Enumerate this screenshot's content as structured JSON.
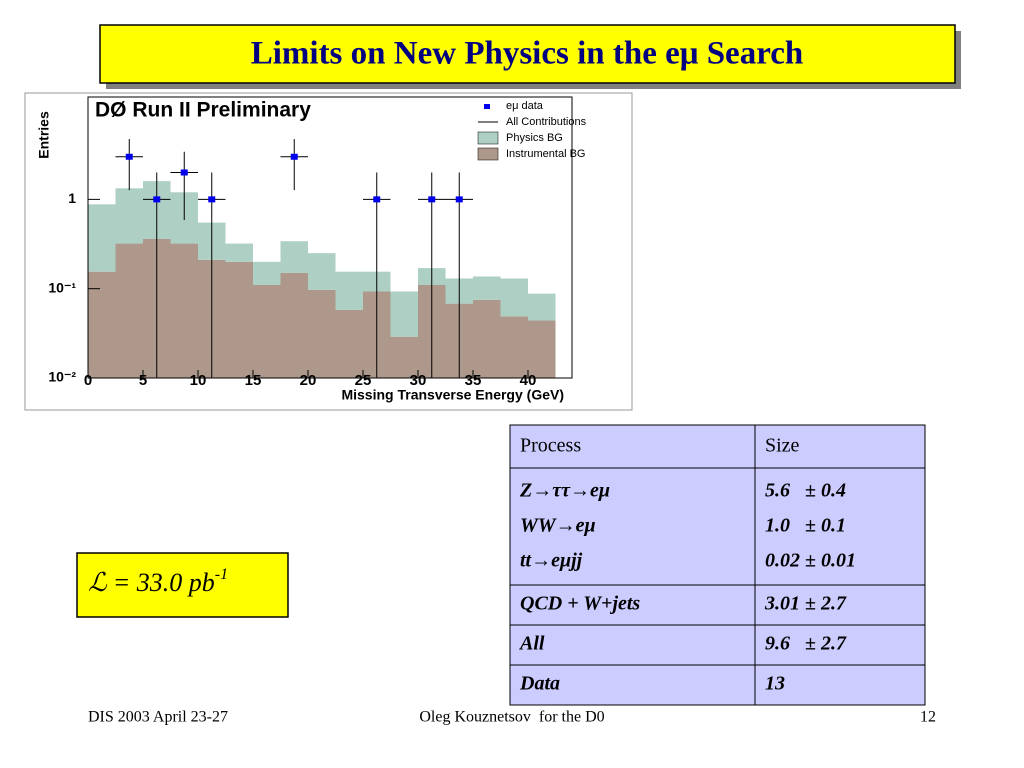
{
  "title": "Limits on New Physics in the eμ Search",
  "chart_data": {
    "type": "histogram",
    "title": "DØ Run II Preliminary",
    "x_label": "Missing Transverse Energy (GeV)",
    "y_label": "Entries",
    "bins": [
      0,
      2.5,
      5,
      7.5,
      10,
      12.5,
      15,
      17.5,
      20,
      22.5,
      25,
      27.5,
      30,
      32.5,
      35,
      37.5,
      40,
      42.5
    ],
    "series": [
      {
        "name": "Instrumental BG",
        "color": "#ad988b",
        "values": [
          0.155,
          0.32,
          0.36,
          0.32,
          0.21,
          0.2,
          0.11,
          0.15,
          0.097,
          0.058,
          0.093,
          0.029,
          0.11,
          0.068,
          0.075,
          0.049,
          0.044
        ]
      },
      {
        "name": "Physics BG",
        "color": "#aecfc4",
        "values": [
          0.725,
          1.01,
          1.24,
          0.88,
          0.34,
          0.12,
          0.09,
          0.19,
          0.153,
          0.097,
          0.062,
          0.064,
          0.06,
          0.062,
          0.062,
          0.081,
          0.044
        ]
      }
    ],
    "total_name": "All Contributions",
    "points": {
      "name": "eμ data",
      "color": "#0000ee",
      "x": [
        3.75,
        6.25,
        8.75,
        11.25,
        18.75,
        26.25,
        31.25,
        33.75
      ],
      "values": [
        3,
        1,
        2,
        1,
        3,
        1,
        1,
        1
      ]
    },
    "xlim": [
      0,
      44
    ],
    "xticks": [
      0,
      5,
      10,
      15,
      20,
      25,
      30,
      35,
      40
    ],
    "ylim": [
      0.01,
      14
    ],
    "log_y": true,
    "yticks": [
      {
        "value": 0.01,
        "label": "10⁻²"
      },
      {
        "value": 0.1,
        "label": "10⁻¹"
      },
      1
    ],
    "legend": "top-right"
  },
  "luminosity": {
    "symbol": "ℒ",
    "text": "= 33.0 pb",
    "exponent": "-1"
  },
  "table": {
    "header": [
      "Process",
      "Size"
    ],
    "rows": [
      [
        [
          "Z→ττ→eμ",
          "WW→eμ",
          "tt→eμjj"
        ],
        [
          "5.6   ± 0.4",
          "1.0   ± 0.1",
          "0.02 ± 0.01"
        ]
      ],
      [
        [
          "QCD + W+jets"
        ],
        [
          "3.01 ± 2.7"
        ]
      ],
      [
        [
          "All"
        ],
        [
          "9.6   ± 2.7"
        ]
      ],
      [
        [
          "Data"
        ],
        [
          "13"
        ]
      ]
    ]
  },
  "footer": {
    "left": "DIS 2003 April 23-27",
    "center": "Oleg Kouznetsov  for the D0",
    "right": "12"
  }
}
